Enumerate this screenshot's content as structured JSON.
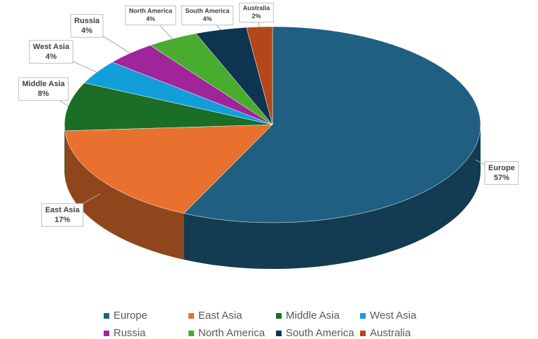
{
  "chart_data": {
    "type": "pie",
    "categories": [
      "Europe",
      "East Asia",
      "Middle Asia",
      "West Asia",
      "Russia",
      "North America",
      "South America",
      "Australia"
    ],
    "values": [
      57,
      17,
      8,
      4,
      4,
      4,
      4,
      2
    ],
    "value_labels": [
      "57%",
      "17%",
      "8%",
      "4%",
      "4%",
      "4%",
      "4%",
      "2%"
    ],
    "colors": [
      "#1f5f82",
      "#e8712f",
      "#1a6e26",
      "#129ed9",
      "#a0249a",
      "#49ac2f",
      "#0e3550",
      "#b5461a"
    ],
    "legend": "bottom"
  }
}
